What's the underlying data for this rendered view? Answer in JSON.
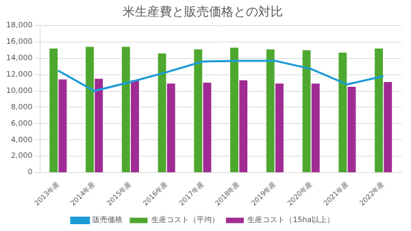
{
  "chart_data": {
    "type": "bar",
    "title": "米生産費と販売価格との対比",
    "categories": [
      "2013年産",
      "2014年産",
      "2015年産",
      "2016年産",
      "2017年産",
      "2018年産",
      "2019年産",
      "2020年産",
      "2021年産",
      "2022年産"
    ],
    "series": [
      {
        "name": "生産コスト（平均）",
        "type": "bar",
        "color": "#4ea72e",
        "values": [
          15200,
          15400,
          15400,
          14600,
          15100,
          15300,
          15100,
          15000,
          14700,
          15200
        ]
      },
      {
        "name": "生産コスト（15ha以上）",
        "type": "bar",
        "color": "#a02b93",
        "values": [
          11400,
          11500,
          11300,
          10900,
          11000,
          11300,
          10900,
          10900,
          10500,
          11100
        ]
      },
      {
        "name": "販売価格",
        "type": "line",
        "color": "#1e9bd7",
        "marker": "none",
        "values": [
          12500,
          10000,
          11100,
          12300,
          13600,
          13700,
          13700,
          12700,
          10800,
          11800
        ]
      }
    ],
    "ylim": [
      0,
      18000
    ],
    "yticks": [
      0,
      {
        "value": 2000,
        "label": "2,000"
      },
      {
        "value": 4000,
        "label": "4,000"
      },
      {
        "value": 6000,
        "label": "6,000"
      },
      {
        "value": 8000,
        "label": "8,000"
      },
      {
        "value": 10000,
        "label": "10,000"
      },
      {
        "value": 12000,
        "label": "12,000"
      },
      {
        "value": 14000,
        "label": "14,000"
      },
      {
        "value": 16000,
        "label": "16,000"
      },
      {
        "value": 18000,
        "label": "18,000"
      }
    ],
    "grid": true,
    "legend": "bottom"
  }
}
